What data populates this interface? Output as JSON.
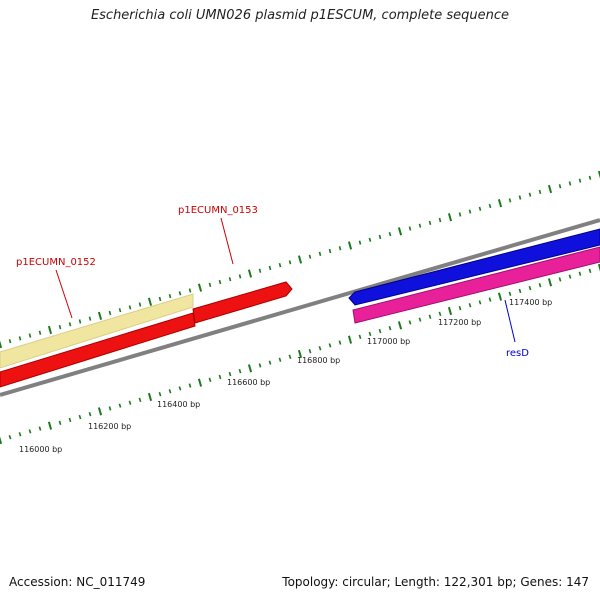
{
  "title": "Escherichia coli UMN026 plasmid p1ESCUM, complete sequence",
  "accession": "Accession: NC_011749",
  "summary": "Topology: circular; Length: 122,301 bp; Genes: 147",
  "colors": {
    "backbone": "#808080",
    "tick": "#1a7a1a",
    "gene_yellow": "#f0e6a0",
    "gene_red": "#ee1111",
    "gene_blue": "#1010dd",
    "gene_pink": "#e8209a",
    "label_red": "#cc0000",
    "label_blue": "#0000cc"
  },
  "scale_labels": [
    "116000 bp",
    "116200 bp",
    "116400 bp",
    "116600 bp",
    "116800 bp",
    "117000 bp",
    "117200 bp",
    "117400 bp"
  ],
  "gene_labels": [
    {
      "name": "p1ECUMN_0152",
      "color": "red"
    },
    {
      "name": "p1ECUMN_0153",
      "color": "red"
    },
    {
      "name": "resD",
      "color": "blue"
    }
  ]
}
